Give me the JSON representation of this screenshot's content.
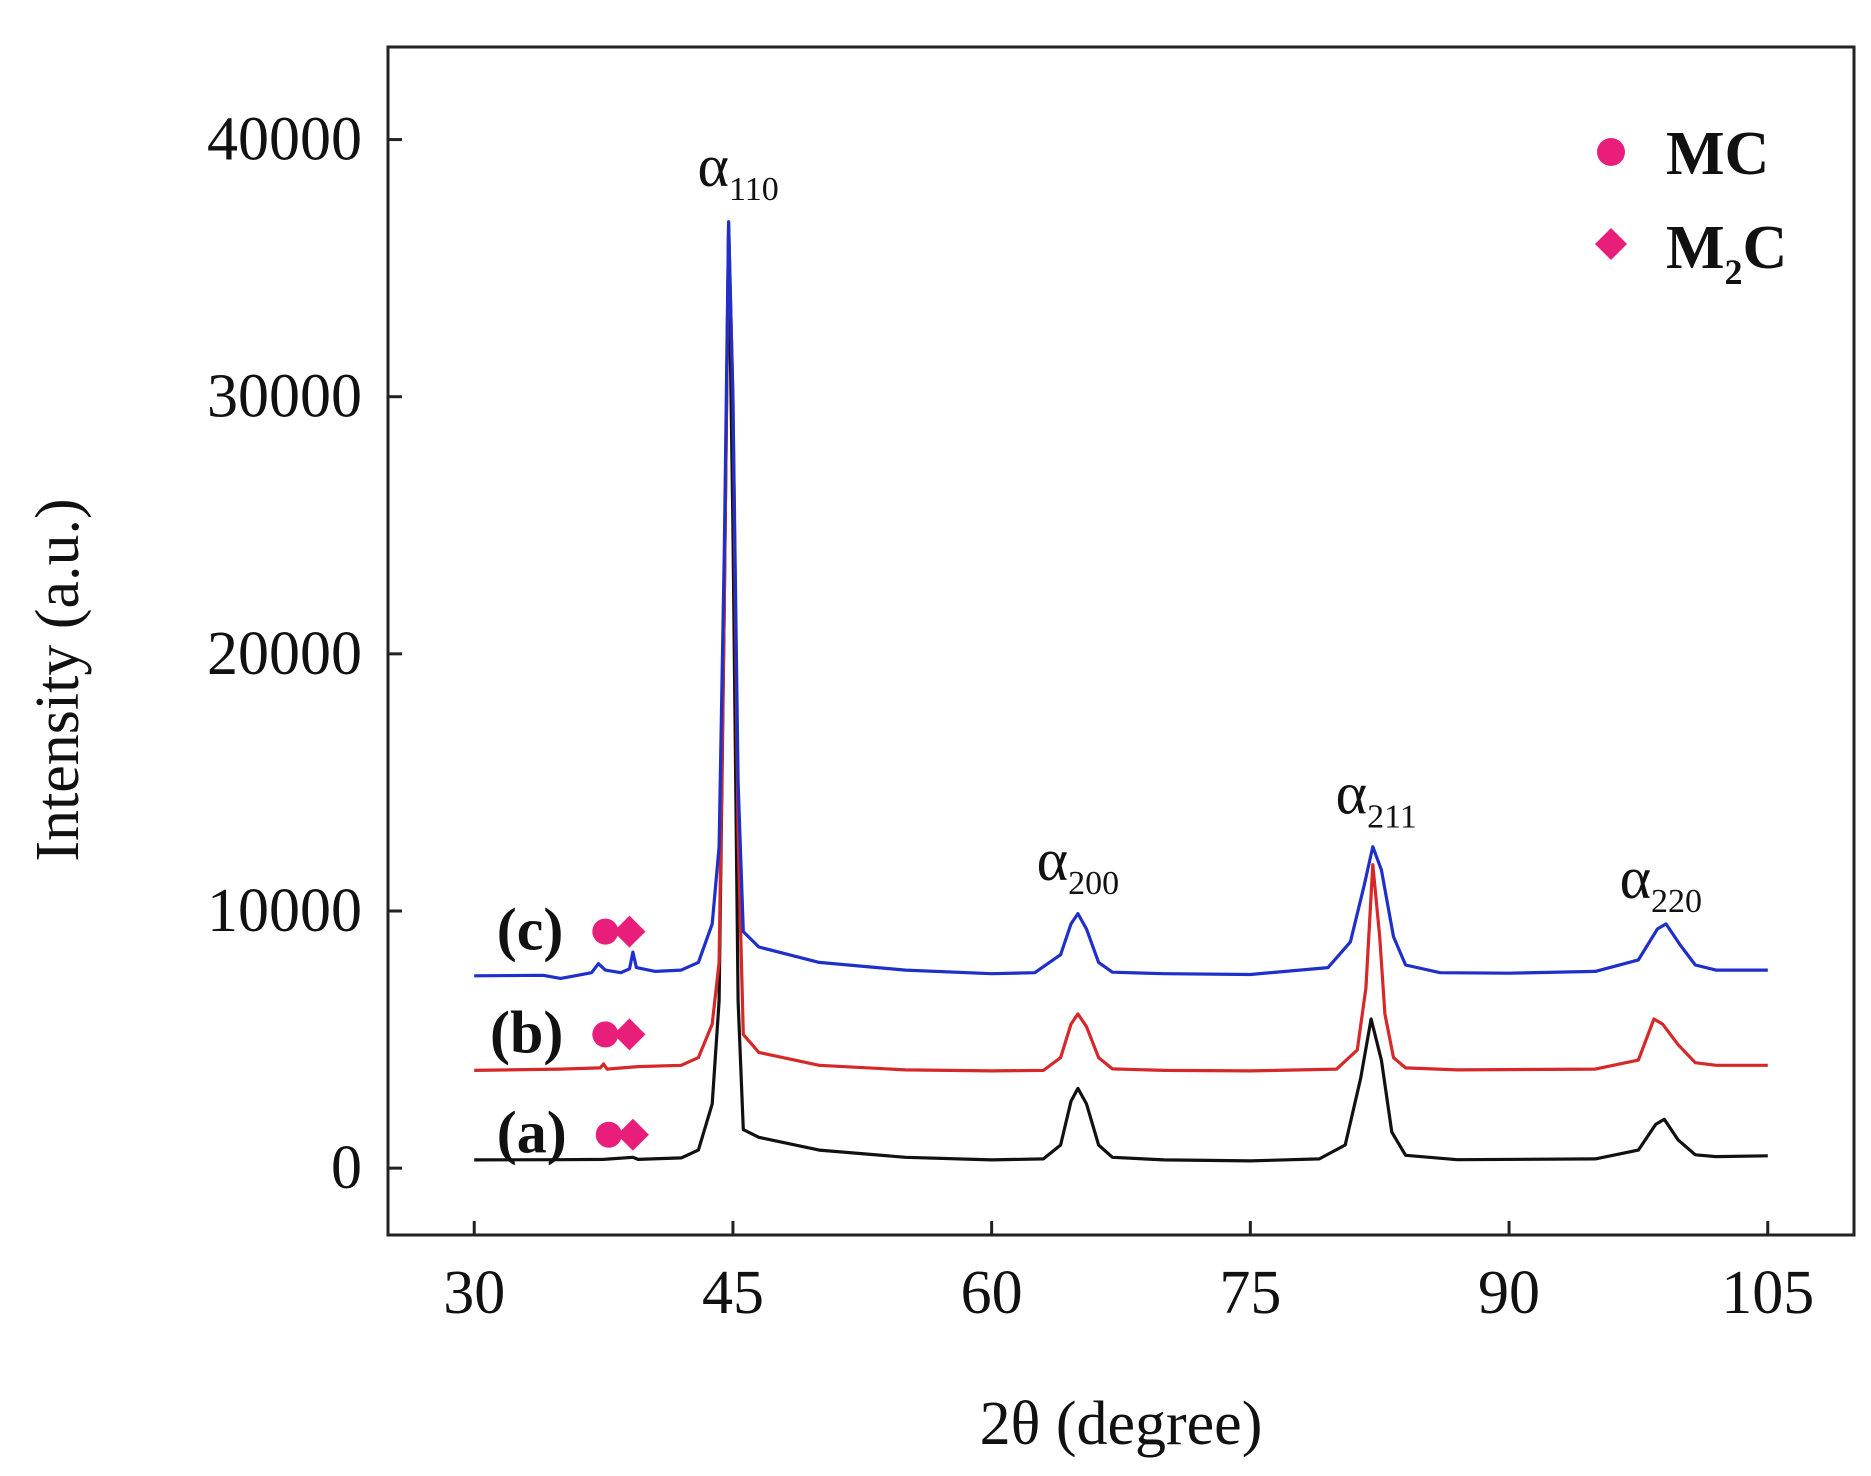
{
  "chart_data": {
    "type": "line",
    "xlabel": "2θ (degree)",
    "ylabel": "Intensity (a.u.)",
    "xlim": [
      25,
      110
    ],
    "ylim": [
      -2600,
      43600
    ],
    "xticks": [
      30,
      45,
      60,
      75,
      90,
      105
    ],
    "yticks": [
      0,
      10000,
      20000,
      30000,
      40000
    ],
    "x_tick_labels": [
      "30",
      "45",
      "60",
      "75",
      "90",
      "105"
    ],
    "y_tick_labels": [
      "0",
      "10000",
      "20000",
      "30000",
      "40000"
    ],
    "peak_labels": [
      {
        "symbol": "α",
        "index": "110",
        "x": 45.3,
        "y": 38200
      },
      {
        "symbol": "α",
        "index": "200",
        "x": 65.0,
        "y": 11200
      },
      {
        "symbol": "α",
        "index": "211",
        "x": 82.3,
        "y": 13800
      },
      {
        "symbol": "α",
        "index": "220",
        "x": 98.8,
        "y": 10500
      }
    ],
    "legend": [
      {
        "marker": "circle",
        "label": "MC",
        "color": "#e91e7a"
      },
      {
        "marker": "diamond",
        "label": "M",
        "subscript": "2",
        "label_suffix": "C",
        "color": "#e91e7a"
      }
    ],
    "series": [
      {
        "name": "(a)",
        "tag": "(a)",
        "color": "#111111",
        "baseline": 300,
        "points": [
          [
            30,
            320
          ],
          [
            35,
            330
          ],
          [
            37.5,
            340
          ],
          [
            39.2,
            420
          ],
          [
            39.5,
            340
          ],
          [
            42,
            400
          ],
          [
            43,
            700
          ],
          [
            43.8,
            2500
          ],
          [
            44.2,
            6500
          ],
          [
            44.5,
            22000
          ],
          [
            44.75,
            36500
          ],
          [
            45.0,
            25000
          ],
          [
            45.3,
            6500
          ],
          [
            45.6,
            1500
          ],
          [
            46.5,
            1200
          ],
          [
            50,
            700
          ],
          [
            55,
            420
          ],
          [
            60,
            320
          ],
          [
            63,
            360
          ],
          [
            64,
            900
          ],
          [
            64.6,
            2600
          ],
          [
            65.0,
            3100
          ],
          [
            65.5,
            2500
          ],
          [
            66.2,
            900
          ],
          [
            67,
            420
          ],
          [
            70,
            320
          ],
          [
            75,
            280
          ],
          [
            79,
            360
          ],
          [
            80.5,
            900
          ],
          [
            81.4,
            3500
          ],
          [
            82.0,
            5800
          ],
          [
            82.6,
            4200
          ],
          [
            83.2,
            1400
          ],
          [
            84,
            500
          ],
          [
            87,
            330
          ],
          [
            95,
            360
          ],
          [
            97.5,
            700
          ],
          [
            98.5,
            1700
          ],
          [
            99.0,
            1900
          ],
          [
            99.8,
            1100
          ],
          [
            100.8,
            520
          ],
          [
            102,
            450
          ],
          [
            105,
            480
          ]
        ],
        "markers": [
          {
            "type": "circle",
            "x": 37.8,
            "y": 1300
          },
          {
            "type": "diamond",
            "x": 39.2,
            "y": 1300
          }
        ]
      },
      {
        "name": "(b)",
        "tag": "(b)",
        "color": "#d62828",
        "baseline": 3800,
        "points": [
          [
            30,
            3800
          ],
          [
            35,
            3850
          ],
          [
            37.3,
            3900
          ],
          [
            37.5,
            4050
          ],
          [
            37.7,
            3850
          ],
          [
            39.5,
            3950
          ],
          [
            42,
            4000
          ],
          [
            43,
            4300
          ],
          [
            43.8,
            5600
          ],
          [
            44.2,
            8000
          ],
          [
            44.5,
            22000
          ],
          [
            44.75,
            36800
          ],
          [
            45.0,
            30000
          ],
          [
            45.3,
            13000
          ],
          [
            45.6,
            5200
          ],
          [
            46.5,
            4500
          ],
          [
            50,
            4000
          ],
          [
            55,
            3820
          ],
          [
            60,
            3780
          ],
          [
            63,
            3800
          ],
          [
            64,
            4300
          ],
          [
            64.6,
            5600
          ],
          [
            65.0,
            6000
          ],
          [
            65.5,
            5500
          ],
          [
            66.2,
            4300
          ],
          [
            67,
            3860
          ],
          [
            70,
            3800
          ],
          [
            75,
            3780
          ],
          [
            80,
            3850
          ],
          [
            81.2,
            4600
          ],
          [
            81.7,
            7000
          ],
          [
            82.1,
            11800
          ],
          [
            82.5,
            9000
          ],
          [
            82.8,
            6000
          ],
          [
            83.3,
            4300
          ],
          [
            84,
            3900
          ],
          [
            87,
            3820
          ],
          [
            95,
            3850
          ],
          [
            97.5,
            4200
          ],
          [
            98.4,
            5800
          ],
          [
            98.9,
            5600
          ],
          [
            99.8,
            4800
          ],
          [
            100.8,
            4100
          ],
          [
            102,
            4000
          ],
          [
            105,
            4000
          ]
        ],
        "markers": [
          {
            "type": "circle",
            "x": 37.6,
            "y": 5200
          },
          {
            "type": "diamond",
            "x": 39.0,
            "y": 5200
          }
        ]
      },
      {
        "name": "(c)",
        "tag": "(c)",
        "color": "#1f2fc9",
        "baseline": 7500,
        "points": [
          [
            30,
            7480
          ],
          [
            34,
            7500
          ],
          [
            35,
            7380
          ],
          [
            36,
            7500
          ],
          [
            36.8,
            7600
          ],
          [
            37.2,
            7950
          ],
          [
            37.6,
            7700
          ],
          [
            38.5,
            7600
          ],
          [
            39.0,
            7750
          ],
          [
            39.2,
            8400
          ],
          [
            39.4,
            7800
          ],
          [
            40.5,
            7650
          ],
          [
            42,
            7700
          ],
          [
            43,
            8000
          ],
          [
            43.8,
            9500
          ],
          [
            44.2,
            12500
          ],
          [
            44.5,
            24000
          ],
          [
            44.75,
            36800
          ],
          [
            45.0,
            30000
          ],
          [
            45.3,
            15000
          ],
          [
            45.6,
            9200
          ],
          [
            46.5,
            8600
          ],
          [
            50,
            8000
          ],
          [
            55,
            7700
          ],
          [
            60,
            7560
          ],
          [
            62.5,
            7600
          ],
          [
            64,
            8300
          ],
          [
            64.6,
            9500
          ],
          [
            65.0,
            9900
          ],
          [
            65.5,
            9300
          ],
          [
            66.2,
            8000
          ],
          [
            67,
            7620
          ],
          [
            70,
            7560
          ],
          [
            75,
            7530
          ],
          [
            79.5,
            7800
          ],
          [
            80.8,
            8800
          ],
          [
            81.6,
            11000
          ],
          [
            82.1,
            12500
          ],
          [
            82.6,
            11600
          ],
          [
            83.3,
            9000
          ],
          [
            84,
            7900
          ],
          [
            86,
            7600
          ],
          [
            90,
            7580
          ],
          [
            95,
            7650
          ],
          [
            97.5,
            8100
          ],
          [
            98.6,
            9300
          ],
          [
            99.1,
            9500
          ],
          [
            99.9,
            8700
          ],
          [
            100.8,
            7900
          ],
          [
            102,
            7700
          ],
          [
            105,
            7700
          ]
        ],
        "markers": [
          {
            "type": "circle",
            "x": 37.6,
            "y": 9200
          },
          {
            "type": "diamond",
            "x": 39.0,
            "y": 9200
          }
        ]
      }
    ]
  }
}
